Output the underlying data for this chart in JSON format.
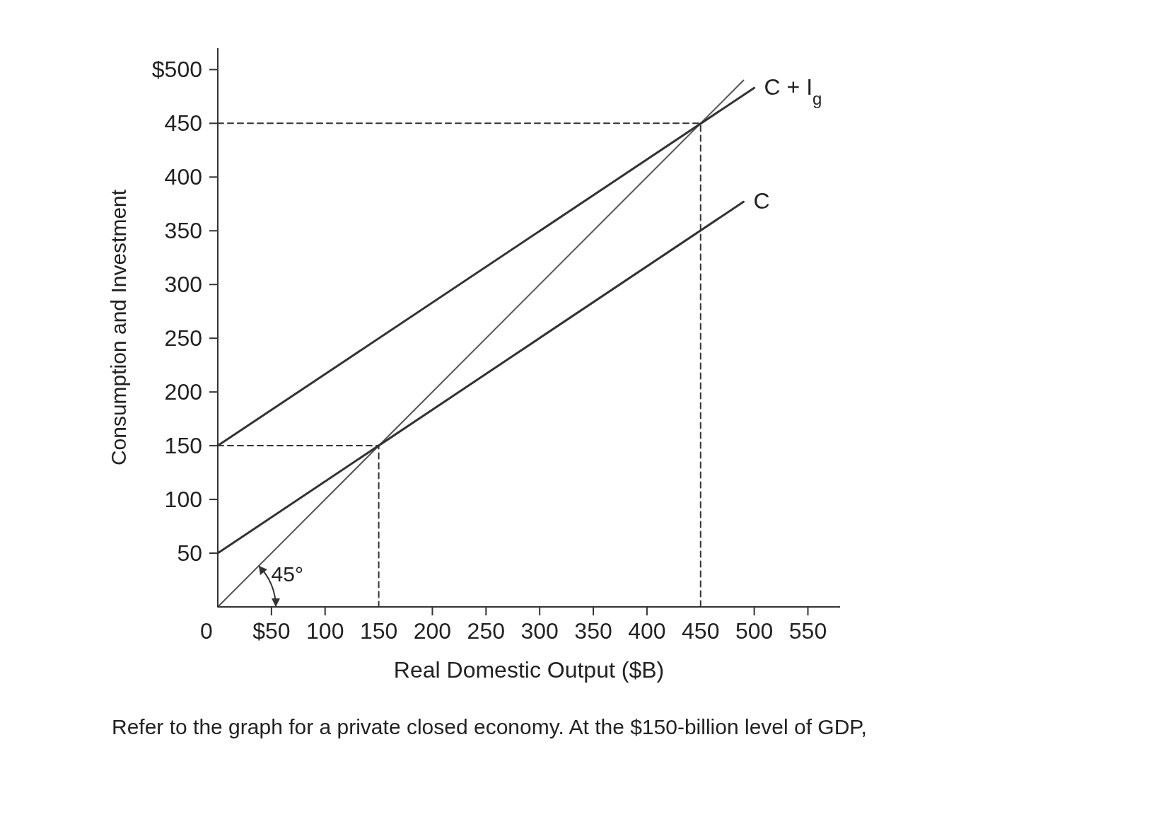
{
  "chart_data": {
    "type": "line",
    "xlabel": "Real Domestic Output ($B)",
    "ylabel": "Consumption and Investment",
    "xlim": [
      0,
      580
    ],
    "ylim": [
      0,
      520
    ],
    "xticks": [
      {
        "value": 0,
        "label": "0"
      },
      {
        "value": 50,
        "label": "$50"
      },
      100,
      150,
      200,
      250,
      300,
      350,
      400,
      450,
      500,
      550
    ],
    "yticks": [
      50,
      100,
      150,
      200,
      250,
      300,
      350,
      400,
      450,
      {
        "value": 500,
        "label": "$500"
      }
    ],
    "grid": false,
    "marker": "none",
    "series": [
      {
        "x": [
          0,
          490
        ],
        "values": [
          0,
          490
        ],
        "color": "#555555"
      },
      {
        "name": "C + I$_{g}$",
        "x": [
          0,
          500
        ],
        "values": [
          150,
          483
        ],
        "color": "#333333"
      },
      {
        "name": "C",
        "x": [
          0,
          490
        ],
        "values": [
          50,
          377
        ],
        "color": "#333333"
      },
      {
        "x": [
          0,
          450,
          450
        ],
        "values": [
          450,
          450,
          0
        ],
        "color": "#333333",
        "line_style": "dashed"
      },
      {
        "x": [
          0,
          150,
          150
        ],
        "values": [
          150,
          150,
          0
        ],
        "color": "#333333",
        "line_style": "dashed"
      }
    ],
    "annotations": [
      {
        "text": "45°",
        "x": 30,
        "y": 30
      },
      "Refer to the graph for a private closed economy. At the $150-billion level of GDP,"
    ]
  }
}
